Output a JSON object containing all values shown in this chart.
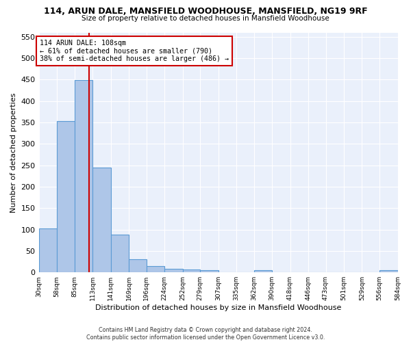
{
  "title1": "114, ARUN DALE, MANSFIELD WOODHOUSE, MANSFIELD, NG19 9RF",
  "title2": "Size of property relative to detached houses in Mansfield Woodhouse",
  "xlabel": "Distribution of detached houses by size in Mansfield Woodhouse",
  "ylabel": "Number of detached properties",
  "footnote": "Contains HM Land Registry data © Crown copyright and database right 2024.\nContains public sector information licensed under the Open Government Licence v3.0.",
  "bin_edges": [
    30,
    58,
    85,
    113,
    141,
    169,
    196,
    224,
    252,
    279,
    307,
    335,
    362,
    390,
    418,
    446,
    473,
    501,
    529,
    556,
    584
  ],
  "bar_heights": [
    103,
    354,
    449,
    245,
    88,
    30,
    14,
    9,
    6,
    5,
    0,
    0,
    5,
    0,
    0,
    0,
    0,
    0,
    0,
    5
  ],
  "bar_color": "#aec6e8",
  "bar_edge_color": "#5b9bd5",
  "subject_value": 108,
  "subject_label": "114 ARUN DALE: 108sqm",
  "annotation_line1": "← 61% of detached houses are smaller (790)",
  "annotation_line2": "38% of semi-detached houses are larger (486) →",
  "vline_color": "#cc0000",
  "annotation_box_edge": "#cc0000",
  "ylim": [
    0,
    560
  ],
  "yticks": [
    0,
    50,
    100,
    150,
    200,
    250,
    300,
    350,
    400,
    450,
    500,
    550
  ],
  "background_color": "#eaf0fb",
  "grid_color": "#ffffff"
}
